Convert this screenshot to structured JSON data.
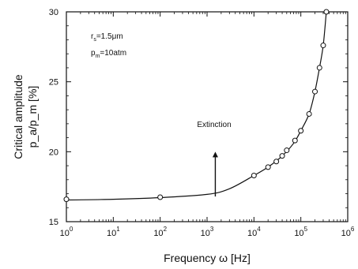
{
  "chart_data": {
    "type": "scatter",
    "xlabel": "Frequency ω [Hz]",
    "ylabel_line1": "Critical amplitude",
    "ylabel_line2": "p_a/p_m [%]",
    "x_scale": "log",
    "xlim": [
      1,
      1000000
    ],
    "ylim": [
      15,
      30
    ],
    "x_ticks": [
      1,
      10,
      100,
      1000,
      10000,
      100000,
      1000000
    ],
    "x_tick_labels": [
      {
        "base": "10",
        "exp": "0"
      },
      {
        "base": "10",
        "exp": "1"
      },
      {
        "base": "10",
        "exp": "2"
      },
      {
        "base": "10",
        "exp": "3"
      },
      {
        "base": "10",
        "exp": "4"
      },
      {
        "base": "10",
        "exp": "5"
      },
      {
        "base": "10",
        "exp": "6"
      }
    ],
    "y_ticks": [
      15,
      20,
      25,
      30
    ],
    "y_tick_labels": [
      "15",
      "20",
      "25",
      "30"
    ],
    "grid": false,
    "annotations": {
      "rs": {
        "main": "r",
        "sub": "s",
        "rest": "=1.5μm"
      },
      "pm": {
        "main": "p",
        "sub": "m",
        "rest": "=10atm"
      },
      "extinction": "Extinction"
    },
    "extinction_arrow": {
      "x": 1500,
      "y_from": 16.8,
      "y_to": 20.0
    },
    "series": [
      {
        "marker": "circle-open",
        "x": [
          1,
          100,
          10000,
          20000,
          30000,
          40000,
          50000,
          75000,
          100000,
          150000,
          200000,
          250000,
          300000,
          350000
        ],
        "y": [
          16.6,
          16.75,
          18.3,
          18.9,
          19.3,
          19.7,
          20.1,
          20.8,
          21.5,
          22.7,
          24.3,
          26.0,
          27.6,
          30.0
        ]
      }
    ],
    "curve": {
      "x": [
        1,
        10,
        100,
        1000,
        3000,
        10000,
        20000,
        40000,
        70000,
        100000,
        150000,
        200000,
        250000,
        300000,
        350000
      ],
      "y": [
        16.55,
        16.6,
        16.72,
        16.95,
        17.35,
        18.3,
        18.9,
        19.7,
        20.6,
        21.5,
        22.7,
        24.3,
        26.0,
        27.6,
        30.0
      ]
    }
  }
}
